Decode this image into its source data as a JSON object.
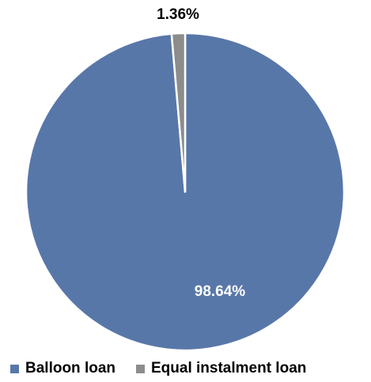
{
  "chart_data": {
    "type": "pie",
    "categories": [
      "Balloon loan",
      "Equal instalment loan"
    ],
    "values": [
      98.64,
      1.36
    ],
    "data_labels": [
      "98.64%",
      "1.36%"
    ],
    "colors": [
      "#5877a9",
      "#8c8c8c"
    ],
    "label_colors": [
      "#ffffff",
      "#000000"
    ],
    "legend_placement": "bottom",
    "start_angle": "top, clockwise"
  }
}
